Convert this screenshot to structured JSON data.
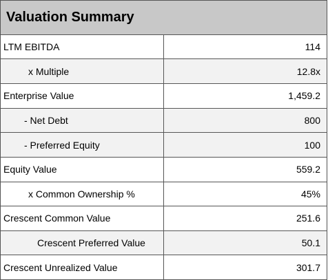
{
  "title": "Valuation Summary",
  "rows": [
    {
      "label": "LTM EBITDA",
      "value": "114"
    },
    {
      "label": "x Multiple",
      "value": "12.8x"
    },
    {
      "label": "Enterprise Value",
      "value": "1,459.2"
    },
    {
      "label": "- Net Debt",
      "value": "800"
    },
    {
      "label": "- Preferred Equity",
      "value": "100"
    },
    {
      "label": "Equity Value",
      "value": "559.2"
    },
    {
      "label": "x Common Ownership %",
      "value": "45%"
    },
    {
      "label": "Crescent Common Value",
      "value": "251.6"
    },
    {
      "label": "Crescent Preferred Value",
      "value": "50.1"
    },
    {
      "label": "Crescent Unrealized Value",
      "value": "301.7"
    }
  ]
}
